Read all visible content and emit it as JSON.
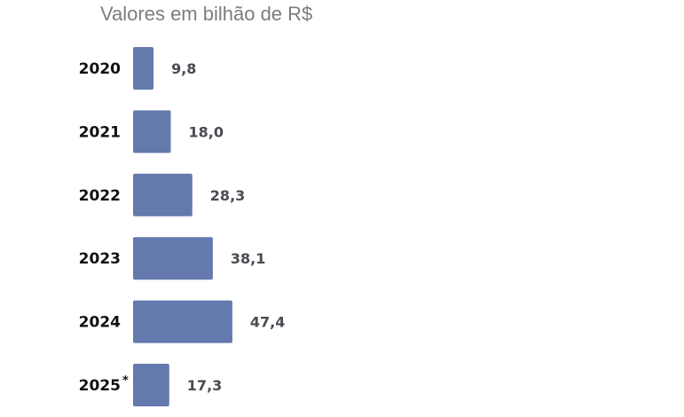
{
  "chart_data": {
    "type": "bar",
    "orientation": "horizontal",
    "title": "Valores em bilhão de R$",
    "categories": [
      "2020",
      "2021",
      "2022",
      "2023",
      "2024",
      "2025"
    ],
    "category_marks": [
      "",
      "",
      "",
      "",
      "",
      "*"
    ],
    "values": [
      9.8,
      18.0,
      28.3,
      38.1,
      47.4,
      17.3
    ],
    "value_labels": [
      "9,8",
      "18,0",
      "28,3",
      "38,1",
      "47,4",
      "17,3"
    ],
    "bar_color": "#6479ad",
    "grid": false,
    "legend": "none",
    "xlabel": "",
    "ylabel": ""
  }
}
